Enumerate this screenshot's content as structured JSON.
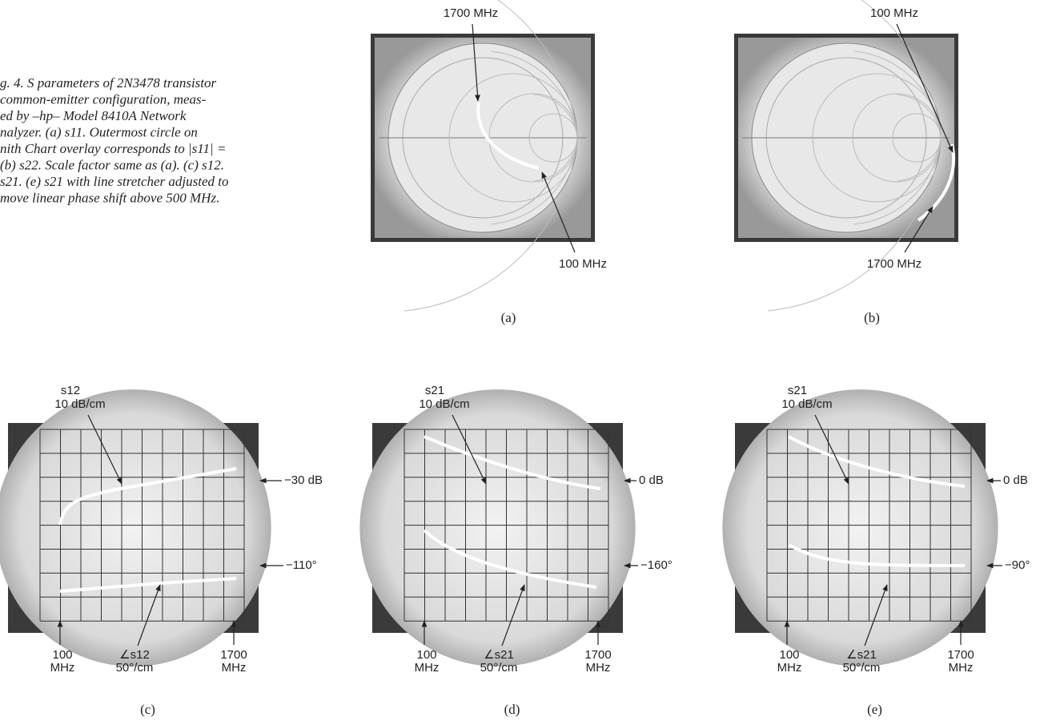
{
  "caption": {
    "lines": [
      "g. 4. S parameters of 2N3478 transistor",
      "common-emitter configuration, meas-",
      "ed by –hp– Model 8410A Network",
      "nalyzer. (a) s11. Outermost circle on",
      "nith Chart overlay corresponds to |s11| =",
      "(b) s22. Scale factor same as (a). (c) s12.",
      "s21. (e) s21 with line stretcher adjusted to",
      "move linear phase shift above 500 MHz."
    ]
  },
  "panels": [
    {
      "tag": "(a)",
      "top_label": "1700 MHz",
      "bottom_label": "100 MHz"
    },
    {
      "tag": "(b)",
      "top_label": "100 MHz",
      "bottom_label": "1700 MHz"
    },
    {
      "tag": "(c)",
      "param": "s12",
      "scale": "10 dB/cm",
      "mag_ref": "−30 dB",
      "phase_ref": "−110°",
      "start": [
        "100",
        "MHz"
      ],
      "phase_label": [
        "∠s12",
        "50°/cm"
      ],
      "stop": [
        "1700",
        "MHz"
      ]
    },
    {
      "tag": "(d)",
      "param": "s21",
      "scale": "10 dB/cm",
      "mag_ref": "0 dB",
      "phase_ref": "−160°",
      "start": [
        "100",
        "MHz"
      ],
      "phase_label": [
        "∠s21",
        "50°/cm"
      ],
      "stop": [
        "1700",
        "MHz"
      ]
    },
    {
      "tag": "(e)",
      "param": "s21",
      "scale": "10 dB/cm",
      "mag_ref": "0 dB",
      "phase_ref": "−90°",
      "start": [
        "100",
        "MHz"
      ],
      "phase_label": [
        "∠s21",
        "50°/cm"
      ],
      "stop": [
        "1700",
        "MHz"
      ]
    }
  ]
}
